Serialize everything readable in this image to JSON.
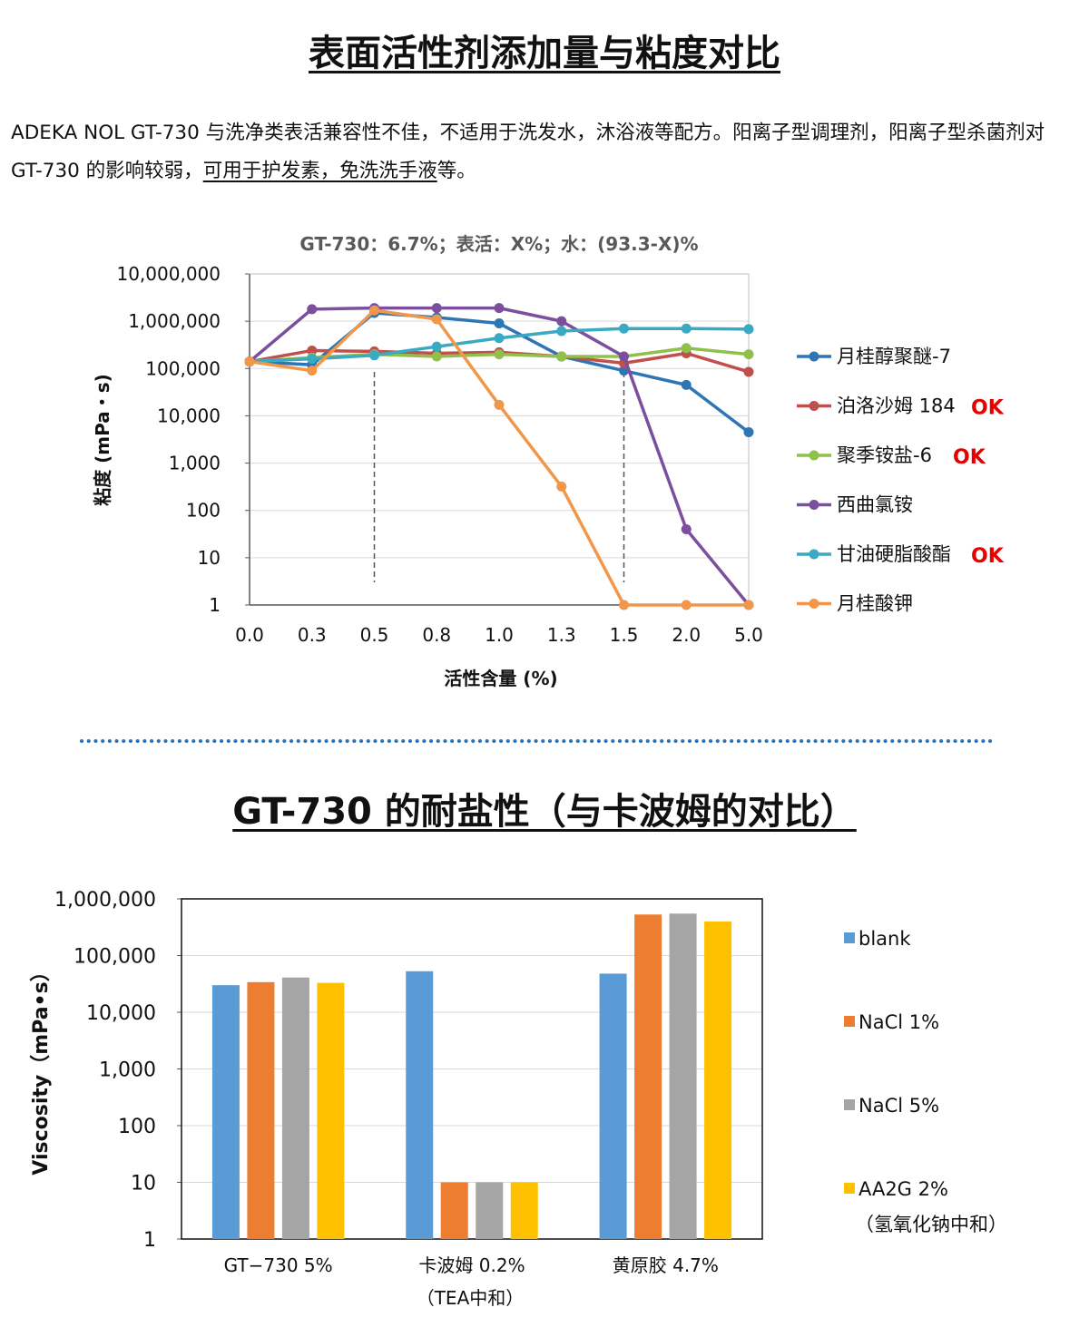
{
  "section1": {
    "title": "表面活性剂添加量与粘度对比",
    "desc_part1": "ADEKA NOL GT-730  与洗净类表活兼容性不佳，不适用于洗发水，沐浴液等配方。阳离子型调理剂，阳离子型杀菌剂对 GT-730 的影响较弱，",
    "desc_underlined": "可用于护发素，免洗洗手液",
    "desc_part2": "等。"
  },
  "section2": {
    "title": "GT-730 的耐盐性（与卡波姆的对比）"
  },
  "chart_data": [
    {
      "type": "line",
      "title": "GT-730：6.7%；表活：X%；水：(93.3-X)%",
      "xlabel": "活性含量 (%)",
      "ylabel": "粘度 (mPa・s)",
      "yscale": "log",
      "ylim": [
        1,
        10000000
      ],
      "y_ticks": [
        "10,000,000",
        "1,000,000",
        "100,000",
        "10,000",
        "1,000",
        "100",
        "10",
        "1"
      ],
      "categories": [
        "0.0",
        "0.3",
        "0.5",
        "0.8",
        "1.0",
        "1.3",
        "1.5",
        "2.0",
        "5.0"
      ],
      "grid": true,
      "legend_position": "right",
      "reference_lines_at": [
        "0.5",
        "1.5"
      ],
      "series": [
        {
          "name": "月桂醇聚醚-7",
          "color": "#2e75b6",
          "ok": "",
          "values": [
            140000,
            120000,
            1500000,
            1200000,
            900000,
            180000,
            90000,
            45000,
            4500
          ]
        },
        {
          "name": "泊洛沙姆 184",
          "color": "#c0504d",
          "ok": "OK",
          "values": [
            140000,
            240000,
            230000,
            210000,
            220000,
            180000,
            130000,
            210000,
            85000
          ]
        },
        {
          "name": "聚季铵盐-6",
          "color": "#8fc04a",
          "ok": "OK",
          "values": [
            140000,
            170000,
            200000,
            180000,
            200000,
            180000,
            180000,
            270000,
            200000
          ]
        },
        {
          "name": "西曲氯铵",
          "color": "#7b4f9e",
          "ok": "",
          "values": [
            140000,
            1800000,
            1900000,
            1900000,
            1900000,
            1000000,
            180000,
            40,
            1
          ]
        },
        {
          "name": "甘油硬脂酸酯",
          "color": "#3aa9c4",
          "ok": "OK",
          "values": [
            140000,
            160000,
            190000,
            290000,
            440000,
            620000,
            700000,
            700000,
            680000
          ]
        },
        {
          "name": "月桂酸钾",
          "color": "#f0974a",
          "ok": "",
          "values": [
            140000,
            90000,
            1700000,
            1100000,
            17000,
            320,
            1,
            1,
            1
          ]
        }
      ]
    },
    {
      "type": "bar",
      "title": "",
      "xlabel": "",
      "ylabel": "Viscosity（mPa•s）",
      "yscale": "log",
      "ylim": [
        1,
        1000000
      ],
      "y_ticks": [
        "1,000,000",
        "100,000",
        "10,000",
        "1,000",
        "100",
        "10",
        "1"
      ],
      "categories": [
        {
          "line1": "GT−730 5%",
          "line2": ""
        },
        {
          "line1": "卡波姆 0.2%",
          "line2": "（TEA中和）"
        },
        {
          "line1": "黄原胶 4.7%",
          "line2": ""
        }
      ],
      "grid": true,
      "legend_position": "right",
      "series": [
        {
          "name": "blank",
          "name2": "",
          "color": "#5b9bd5",
          "values": [
            30000,
            53000,
            48000
          ]
        },
        {
          "name": "NaCl 1%",
          "name2": "",
          "color": "#ed7d31",
          "values": [
            34000,
            10,
            530000
          ]
        },
        {
          "name": "NaCl 5%",
          "name2": "",
          "color": "#a5a5a5",
          "values": [
            41000,
            10,
            550000
          ]
        },
        {
          "name": "AA2G 2%",
          "name2": "（氢氧化钠中和）",
          "color": "#ffc000",
          "values": [
            33000,
            10,
            400000
          ]
        }
      ]
    }
  ]
}
